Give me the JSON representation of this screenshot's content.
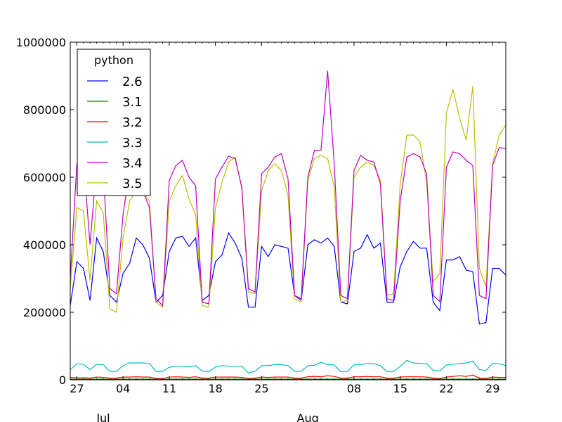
{
  "chart_data": {
    "type": "line",
    "title": "",
    "xlabel": "",
    "ylabel": "",
    "ylim": [
      0,
      1000000
    ],
    "yticks": [
      0,
      200000,
      400000,
      600000,
      800000,
      1000000
    ],
    "ytick_labels": [
      "0",
      "200000",
      "400000",
      "600000",
      "800000",
      "1000000"
    ],
    "x_start": "2016-06-26",
    "x_end": "2016-08-31",
    "xticks": [
      {
        "date": "2016-06-27",
        "label": "27"
      },
      {
        "date": "2016-07-04",
        "label": "04"
      },
      {
        "date": "2016-07-11",
        "label": "11"
      },
      {
        "date": "2016-07-18",
        "label": "18"
      },
      {
        "date": "2016-07-25",
        "label": "25"
      },
      {
        "date": "2016-08-08",
        "label": "08"
      },
      {
        "date": "2016-08-15",
        "label": "15"
      },
      {
        "date": "2016-08-22",
        "label": "22"
      },
      {
        "date": "2016-08-29",
        "label": "29"
      }
    ],
    "month_labels": [
      {
        "date": "2016-07-01",
        "label": "Jul"
      },
      {
        "date": "2016-08-01",
        "label": "Aug"
      }
    ],
    "legend": {
      "title": "python",
      "placement": "top-left"
    },
    "series": [
      {
        "name": "2.6",
        "color": "#0000ff",
        "values": [
          220000,
          350000,
          330000,
          235000,
          420000,
          380000,
          250000,
          230000,
          315000,
          345000,
          420000,
          400000,
          360000,
          230000,
          250000,
          380000,
          420000,
          425000,
          395000,
          420000,
          235000,
          250000,
          350000,
          370000,
          435000,
          405000,
          360000,
          215000,
          215000,
          395000,
          365000,
          400000,
          395000,
          390000,
          250000,
          235000,
          400000,
          415000,
          405000,
          420000,
          395000,
          230000,
          225000,
          380000,
          390000,
          430000,
          390000,
          405000,
          230000,
          230000,
          335000,
          380000,
          410000,
          390000,
          390000,
          230000,
          205000,
          355000,
          355000,
          365000,
          325000,
          320000,
          165000,
          170000,
          330000,
          330000,
          310000
        ]
      },
      {
        "name": "3.1",
        "color": "#008000",
        "values": [
          2000,
          2000,
          2000,
          2000,
          2000,
          2000,
          2000,
          2000,
          2000,
          2000,
          2000,
          2000,
          2000,
          2000,
          2000,
          2000,
          2000,
          2000,
          2000,
          2000,
          2000,
          2000,
          2000,
          2000,
          2000,
          2000,
          2000,
          2000,
          2000,
          2000,
          2000,
          2000,
          2000,
          2000,
          2000,
          2000,
          2000,
          2000,
          2000,
          2000,
          2000,
          2000,
          2000,
          2000,
          2000,
          2000,
          2000,
          2000,
          2000,
          2000,
          2000,
          2000,
          2000,
          2000,
          2000,
          2000,
          2000,
          2000,
          2000,
          2000,
          2000,
          2000,
          2000,
          2000,
          2000,
          2000,
          2000
        ]
      },
      {
        "name": "3.2",
        "color": "#ff0000",
        "values": [
          7000,
          6000,
          6000,
          5000,
          8000,
          7000,
          5000,
          5000,
          8000,
          8000,
          9000,
          8000,
          8000,
          4000,
          4000,
          8000,
          9000,
          8000,
          7000,
          9000,
          5000,
          5000,
          8000,
          8000,
          8000,
          8000,
          7000,
          4000,
          5000,
          8000,
          7000,
          8000,
          8000,
          8000,
          5000,
          5000,
          9000,
          10000,
          9000,
          12000,
          10000,
          5000,
          5000,
          9000,
          9000,
          10000,
          9000,
          9000,
          5000,
          5000,
          8000,
          9000,
          9000,
          9000,
          8000,
          5000,
          4000,
          8000,
          10000,
          12000,
          10000,
          14000,
          5000,
          4000,
          8000,
          7000,
          7000
        ]
      },
      {
        "name": "3.3",
        "color": "#00bfbf",
        "values": [
          30000,
          47000,
          46000,
          30000,
          46000,
          45000,
          25000,
          25000,
          42000,
          50000,
          50000,
          50000,
          48000,
          25000,
          25000,
          37000,
          40000,
          40000,
          38000,
          42000,
          26000,
          24000,
          38000,
          42000,
          40000,
          40000,
          40000,
          20000,
          25000,
          42000,
          42000,
          45000,
          45000,
          42000,
          25000,
          25000,
          42000,
          43000,
          52000,
          45000,
          44000,
          24000,
          25000,
          44000,
          45000,
          48000,
          48000,
          42000,
          24000,
          25000,
          40000,
          58000,
          50000,
          48000,
          48000,
          28000,
          26000,
          44000,
          46000,
          48000,
          50000,
          55000,
          30000,
          28000,
          48000,
          48000,
          42000
        ]
      },
      {
        "name": "3.4",
        "color": "#bf00bf",
        "values": [
          300000,
          640000,
          650000,
          400000,
          640000,
          620000,
          270000,
          255000,
          490000,
          620000,
          640000,
          560000,
          510000,
          240000,
          220000,
          590000,
          635000,
          650000,
          600000,
          575000,
          230000,
          225000,
          595000,
          630000,
          662000,
          655000,
          570000,
          270000,
          260000,
          610000,
          630000,
          660000,
          670000,
          595000,
          250000,
          240000,
          600000,
          680000,
          680000,
          915000,
          640000,
          250000,
          240000,
          620000,
          665000,
          650000,
          645000,
          580000,
          240000,
          235000,
          530000,
          660000,
          670000,
          660000,
          610000,
          250000,
          232000,
          630000,
          675000,
          670000,
          650000,
          635000,
          250000,
          240000,
          635000,
          688000,
          685000
        ]
      },
      {
        "name": "3.5",
        "color": "#bfbf00",
        "values": [
          270000,
          510000,
          500000,
          295000,
          530000,
          495000,
          210000,
          200000,
          420000,
          530000,
          560000,
          555000,
          530000,
          230000,
          215000,
          530000,
          575000,
          605000,
          535000,
          490000,
          220000,
          215000,
          510000,
          585000,
          645000,
          660000,
          565000,
          260000,
          255000,
          560000,
          620000,
          640000,
          620000,
          545000,
          240000,
          230000,
          590000,
          655000,
          665000,
          655000,
          570000,
          230000,
          235000,
          600000,
          630000,
          645000,
          635000,
          590000,
          250000,
          255000,
          580000,
          725000,
          725000,
          705000,
          585000,
          290000,
          315000,
          790000,
          860000,
          775000,
          710000,
          870000,
          330000,
          275000,
          640000,
          725000,
          755000
        ]
      }
    ]
  }
}
